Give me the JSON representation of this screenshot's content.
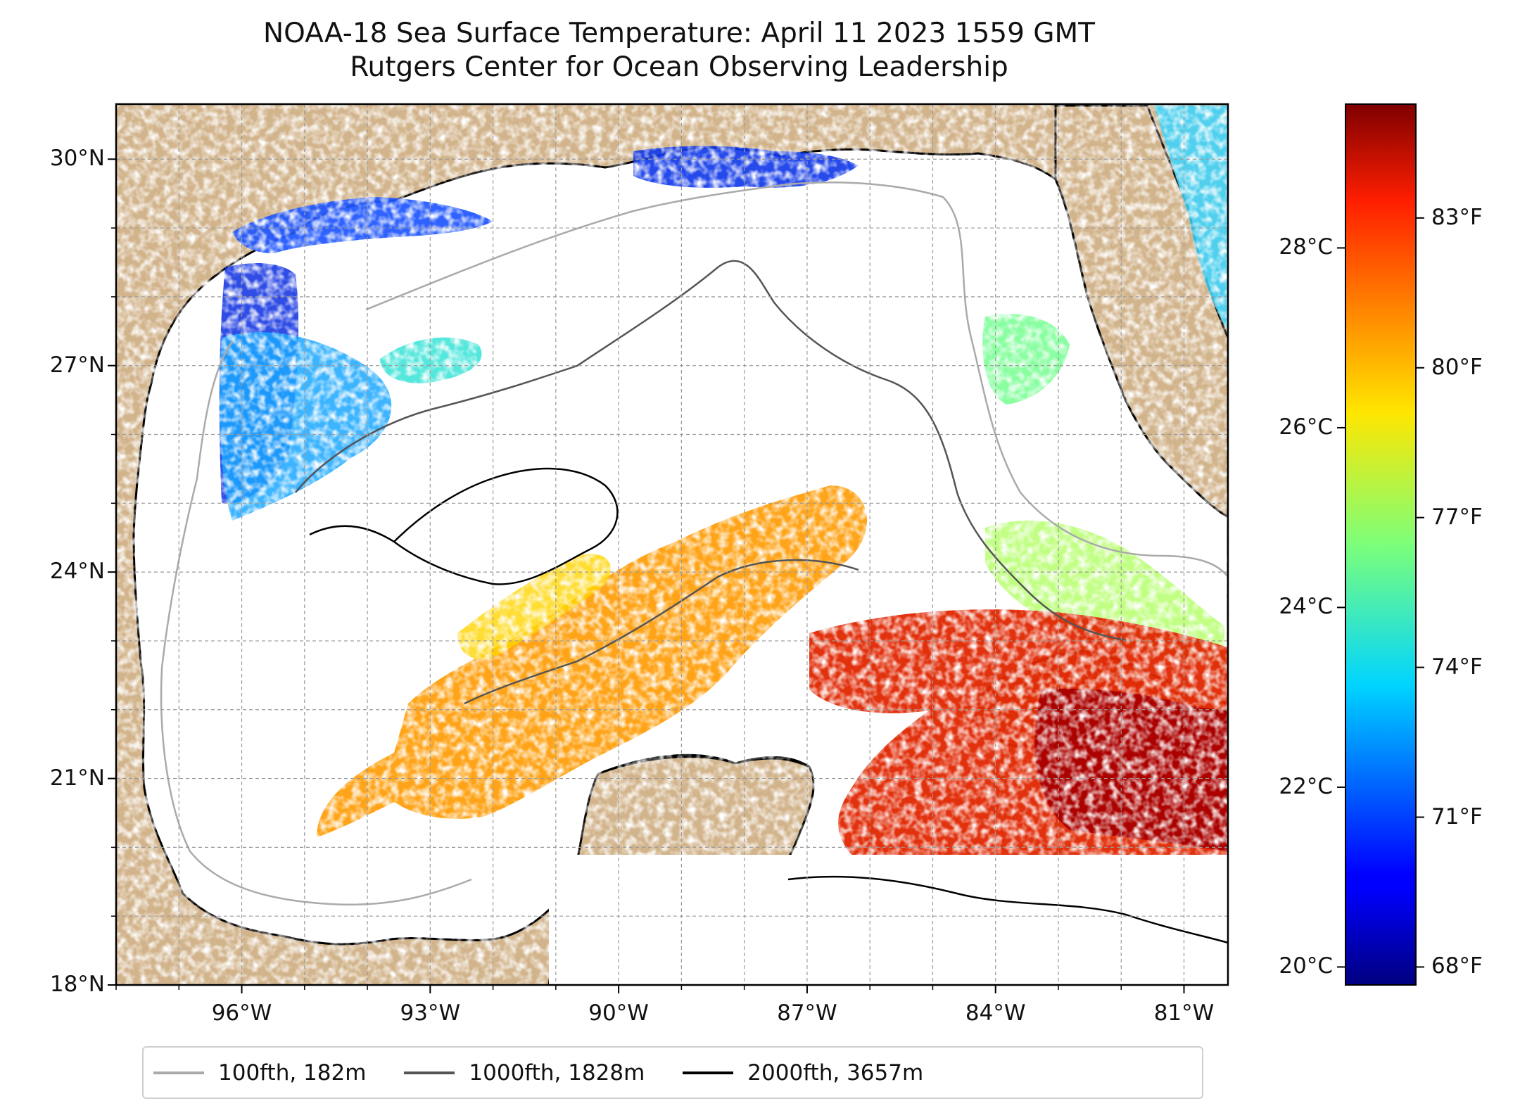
{
  "title": {
    "line1": "NOAA-18 Sea Surface Temperature: April 11 2023 1559 GMT",
    "line2": "Rutgers Center for Ocean Observing Leadership"
  },
  "map": {
    "lon_range": [
      -98,
      -80.3
    ],
    "lat_range": [
      18,
      30.8
    ],
    "lat_ticks": [
      {
        "value": 30,
        "label": "30°N"
      },
      {
        "value": 27,
        "label": "27°N"
      },
      {
        "value": 24,
        "label": "24°N"
      },
      {
        "value": 21,
        "label": "21°N"
      },
      {
        "value": 18,
        "label": "18°N"
      }
    ],
    "lon_ticks": [
      {
        "value": -96,
        "label": "96°W"
      },
      {
        "value": -93,
        "label": "93°W"
      },
      {
        "value": -90,
        "label": "90°W"
      },
      {
        "value": -87,
        "label": "87°W"
      },
      {
        "value": -84,
        "label": "84°W"
      },
      {
        "value": -81,
        "label": "81°W"
      }
    ],
    "colors": {
      "land": "#d2b48c",
      "ocean_no_data": "#ffffff",
      "inland_water": "#9bb6e0"
    }
  },
  "colorbar": {
    "colormap": "jet",
    "range_c": [
      19.8,
      29.6
    ],
    "celsius_ticks": [
      {
        "value": 28,
        "label": "28°C"
      },
      {
        "value": 26,
        "label": "26°C"
      },
      {
        "value": 24,
        "label": "24°C"
      },
      {
        "value": 22,
        "label": "22°C"
      },
      {
        "value": 20,
        "label": "20°C"
      }
    ],
    "fahrenheit_ticks": [
      {
        "value": 83,
        "label": "83°F"
      },
      {
        "value": 80,
        "label": "80°F"
      },
      {
        "value": 77,
        "label": "77°F"
      },
      {
        "value": 74,
        "label": "74°F"
      },
      {
        "value": 71,
        "label": "71°F"
      },
      {
        "value": 68,
        "label": "68°F"
      }
    ]
  },
  "legend": [
    {
      "label": "100fth, 182m",
      "color": "#aaaaaa"
    },
    {
      "label": "1000fth, 1828m",
      "color": "#555555"
    },
    {
      "label": "2000fth, 3657m",
      "color": "#000000"
    }
  ]
}
